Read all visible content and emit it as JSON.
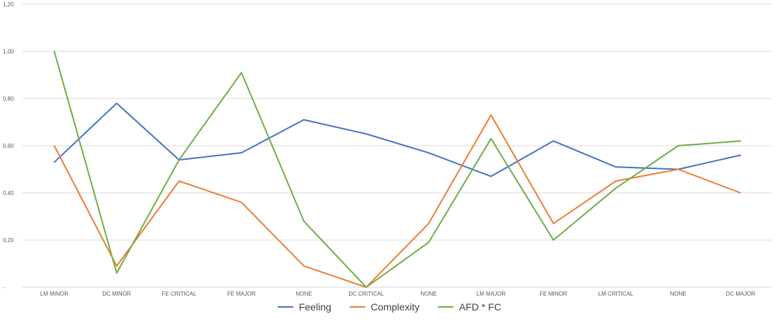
{
  "chart_data": {
    "type": "line",
    "categories": [
      "LM MINOR",
      "DC MINOR",
      "FE CRITICAL",
      "FE  MAJOR",
      "NONE",
      "DC CRITICAL",
      "NONE",
      "LM MAJOR",
      "FE   MINOR",
      "LM CRITICAL",
      "NONE",
      "DC MAJOR"
    ],
    "ylim": [
      0,
      1.2
    ],
    "yticks": [
      {
        "value": 0,
        "label": "-"
      },
      {
        "value": 0.2,
        "label": "0,20"
      },
      {
        "value": 0.4,
        "label": "0,40"
      },
      {
        "value": 0.6,
        "label": "0,60"
      },
      {
        "value": 0.8,
        "label": "0,80"
      },
      {
        "value": 1.0,
        "label": "1,00"
      },
      {
        "value": 1.2,
        "label": "1,20"
      }
    ],
    "grid": true,
    "legend_position": "bottom",
    "series": [
      {
        "name": "Feeling",
        "color": "#4472c4",
        "values": [
          0.53,
          0.78,
          0.54,
          0.57,
          0.71,
          0.65,
          0.57,
          0.47,
          0.62,
          0.51,
          0.5,
          0.56
        ]
      },
      {
        "name": "Complexity",
        "color": "#ed7d31",
        "values": [
          0.6,
          0.09,
          0.45,
          0.36,
          0.09,
          0.0,
          0.27,
          0.73,
          0.27,
          0.45,
          0.5,
          0.4
        ]
      },
      {
        "name": "AFD * FC",
        "color": "#70ad47",
        "values": [
          1.0,
          0.06,
          0.54,
          0.91,
          0.28,
          0.0,
          0.19,
          0.63,
          0.2,
          0.42,
          0.6,
          0.62
        ]
      }
    ]
  }
}
